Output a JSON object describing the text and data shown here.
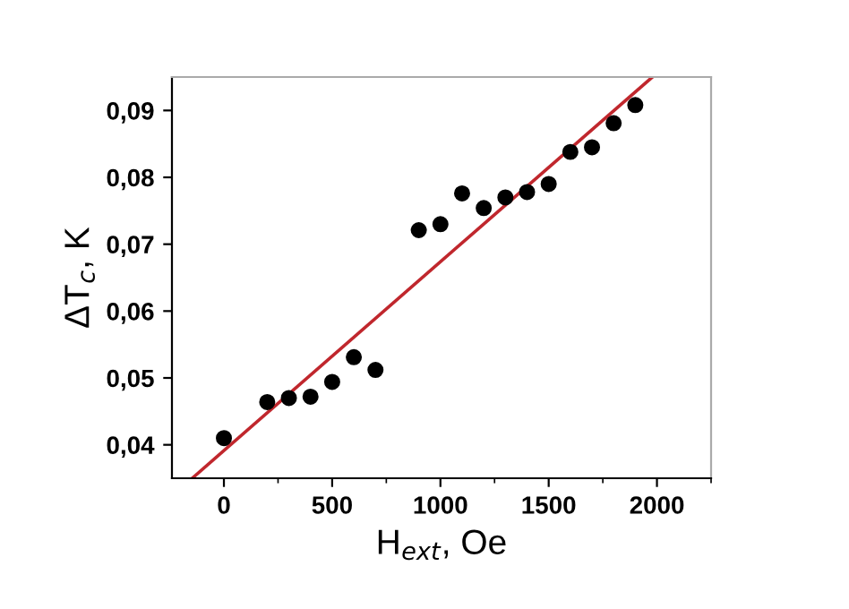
{
  "chart_data": {
    "type": "scatter",
    "xlabel": "H$_{ext}$, Oe",
    "ylabel": "ΔT$_{c}$, K",
    "xlim": [
      -240,
      2250
    ],
    "xticks": [
      0,
      500,
      1000,
      1500,
      2000
    ],
    "ylim": [
      0.035,
      0.095
    ],
    "yticks": [
      {
        "value": 0.04,
        "label": "0,04"
      },
      {
        "value": 0.05,
        "label": "0,05"
      },
      {
        "value": 0.06,
        "label": "0,06"
      },
      {
        "value": 0.07,
        "label": "0,07"
      },
      {
        "value": 0.08,
        "label": "0,08"
      },
      {
        "value": 0.09,
        "label": "0,09"
      }
    ],
    "grid": false,
    "legend": false,
    "series": [
      {
        "color": "#000000",
        "marker": "circle",
        "x": [
          0,
          200,
          300,
          400,
          500,
          600,
          700,
          900,
          1000,
          1100,
          1200,
          1300,
          1400,
          1500,
          1600,
          1700,
          1800,
          1900
        ],
        "values": [
          0.041,
          0.0464,
          0.047,
          0.0472,
          0.0494,
          0.0531,
          0.0512,
          0.0721,
          0.073,
          0.0776,
          0.0754,
          0.077,
          0.0778,
          0.079,
          0.0838,
          0.0845,
          0.0881,
          0.0908
        ]
      },
      {
        "type": "line",
        "color": "#c0272d",
        "marker": "none",
        "line_style": "solid",
        "x": [
          -143,
          1979
        ],
        "values": [
          0.0351,
          0.095
        ]
      }
    ]
  }
}
